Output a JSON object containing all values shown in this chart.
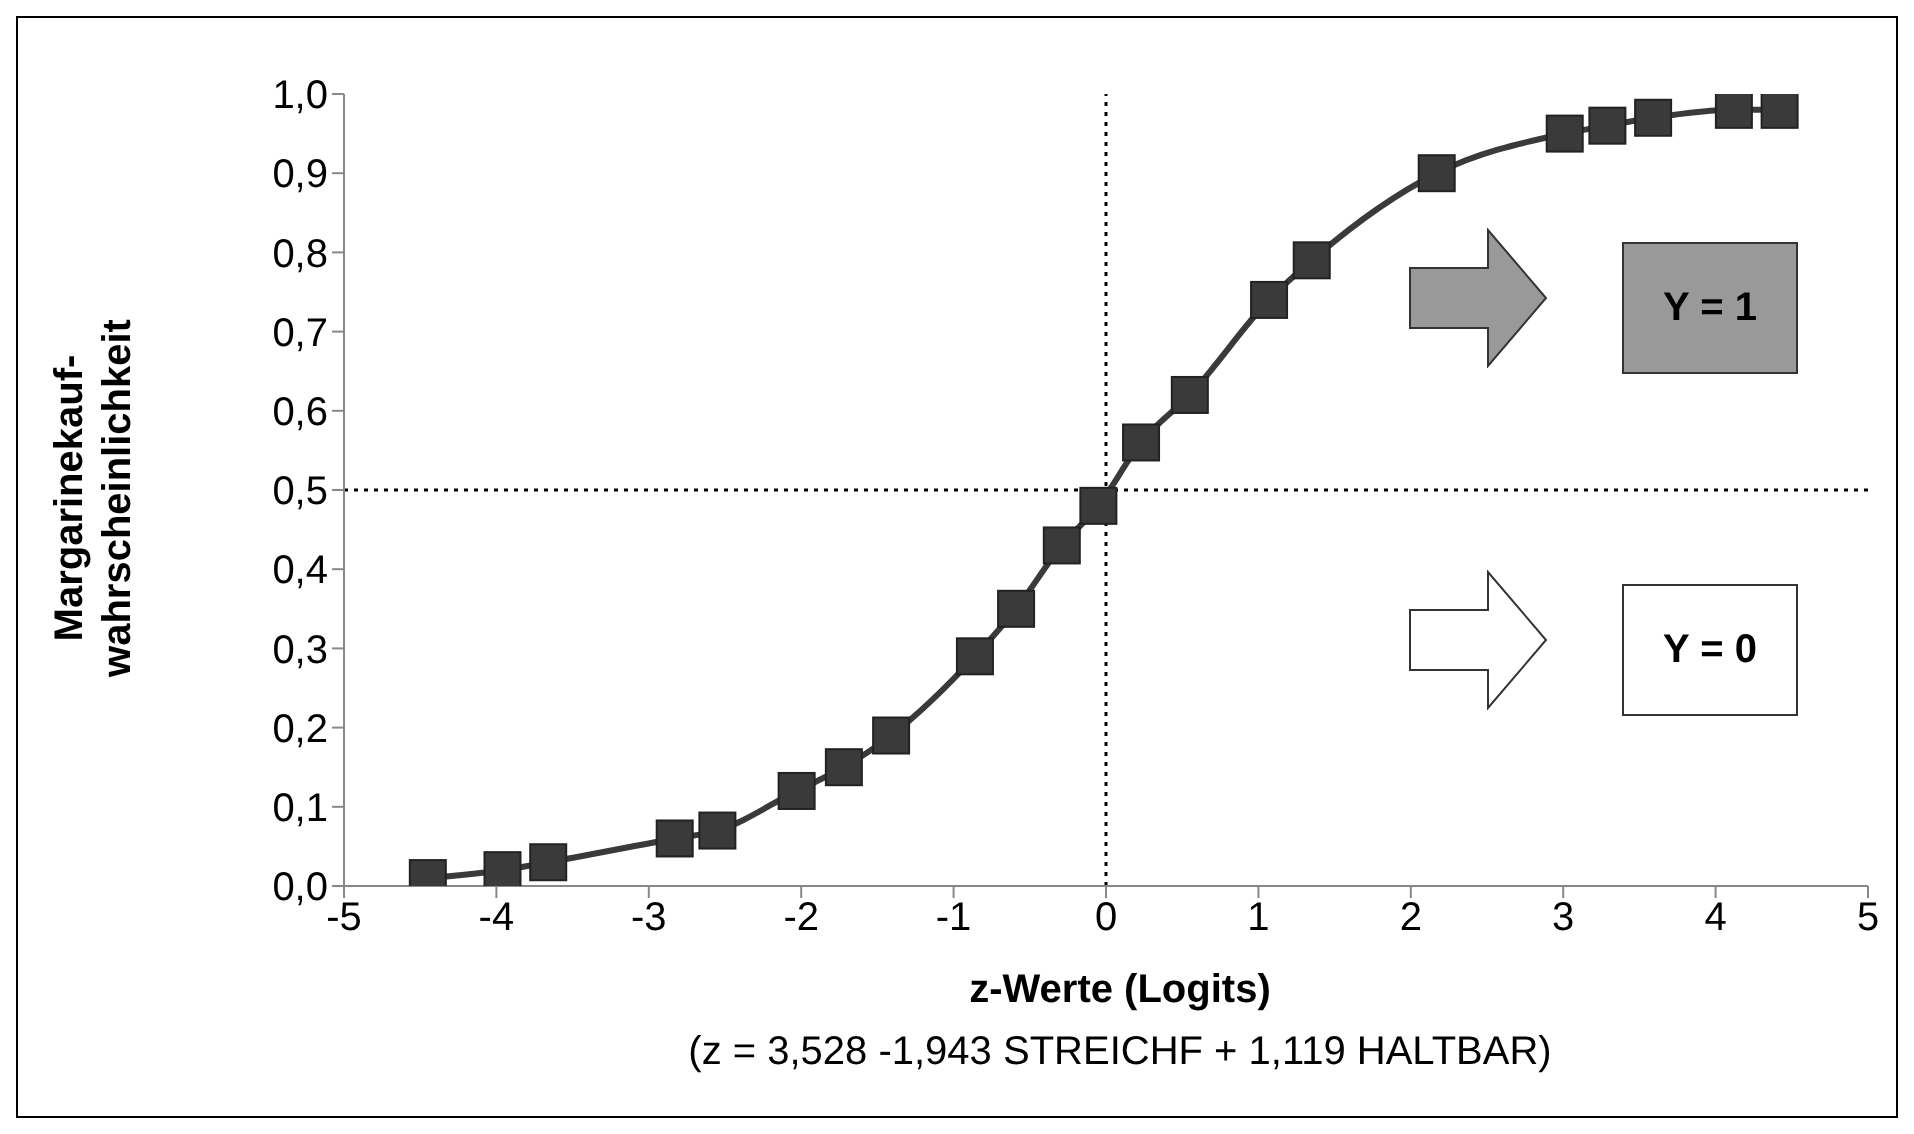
{
  "chart_data": {
    "type": "line",
    "xlabel": "z-Werte (Logits)",
    "ylabel": "Margarinekauf-\nwahrscheinlichkeit",
    "x": [
      -4.45,
      -3.96,
      -3.66,
      -2.83,
      -2.55,
      -2.03,
      -1.72,
      -1.41,
      -0.86,
      -0.59,
      -0.29,
      -0.05,
      0.23,
      0.55,
      1.07,
      1.35,
      2.17,
      3.01,
      3.29,
      3.59,
      4.12,
      4.42
    ],
    "series": [
      {
        "color": "#3a3a3a",
        "values": [
          0.01,
          0.02,
          0.03,
          0.06,
          0.07,
          0.12,
          0.15,
          0.19,
          0.29,
          0.35,
          0.43,
          0.48,
          0.56,
          0.62,
          0.74,
          0.79,
          0.9,
          0.95,
          0.96,
          0.97,
          0.98,
          0.98
        ]
      }
    ],
    "marker": "square",
    "line_style": "solid",
    "grid": false,
    "legend": false,
    "xlim": [
      -5,
      5
    ],
    "xticks": [
      -5,
      -4,
      -3,
      -2,
      -1,
      0,
      1,
      2,
      3,
      4,
      5
    ],
    "ylim": [
      0,
      1
    ],
    "yticks": [
      {
        "value": 0,
        "label": "0,0"
      },
      {
        "value": 0.1,
        "label": "0,1"
      },
      {
        "value": 0.2,
        "label": "0,2"
      },
      {
        "value": 0.3,
        "label": "0,3"
      },
      {
        "value": 0.4,
        "label": "0,4"
      },
      {
        "value": 0.5,
        "label": "0,5"
      },
      {
        "value": 0.6,
        "label": "0,6"
      },
      {
        "value": 0.7,
        "label": "0,7"
      },
      {
        "value": 0.8,
        "label": "0,8"
      },
      {
        "value": 0.9,
        "label": "0,9"
      },
      {
        "value": 1,
        "label": "1,0"
      }
    ],
    "ref_lines": [
      {
        "axis": "x",
        "value": 0,
        "line_style": "dotted",
        "color": "#000000"
      },
      {
        "axis": "y",
        "value": 0.5,
        "line_style": "dotted",
        "color": "#000000"
      }
    ],
    "annotations": [
      "Y = 1",
      "Y = 0",
      "(z = 3,528 -1,943 STREICHF + 1,119 HALTBAR)"
    ]
  }
}
